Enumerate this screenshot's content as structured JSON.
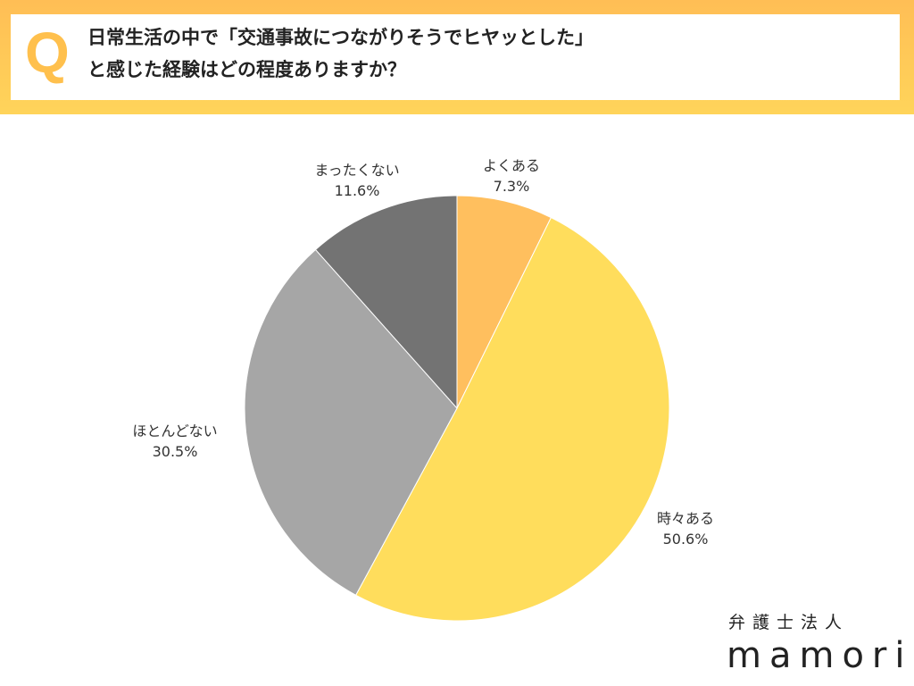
{
  "header": {
    "q_mark": "Q",
    "question_line1": "日常生活の中で「交通事故につながりそうでヒヤッとした」",
    "question_line2": "と感じた経験はどの程度ありますか？"
  },
  "chart_data": {
    "type": "pie",
    "start": "top",
    "direction": "clockwise",
    "slices": [
      {
        "label": "よくある",
        "value": 7.3,
        "value_label": "7.3%",
        "color": "#FFBF5E"
      },
      {
        "label": "時々ある",
        "value": 50.6,
        "value_label": "50.6%",
        "color": "#FFDD5C"
      },
      {
        "label": "ほとんどない",
        "value": 30.5,
        "value_label": "30.5%",
        "color": "#A6A6A6"
      },
      {
        "label": "まったくない",
        "value": 11.6,
        "value_label": "11.6%",
        "color": "#737373"
      }
    ]
  },
  "logo": {
    "line1": "弁護士法人",
    "line2": "mamori"
  }
}
